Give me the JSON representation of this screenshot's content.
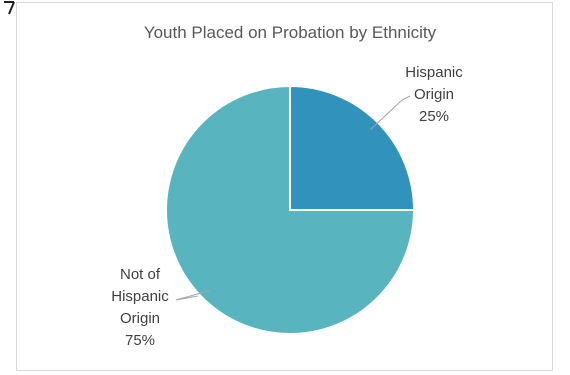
{
  "chart_data": {
    "type": "pie",
    "title": "Youth Placed on Probation by Ethnicity",
    "slices": [
      {
        "name": "Hispanic Origin",
        "value": 25,
        "label_lines": [
          "Hispanic",
          "Origin",
          "25%"
        ],
        "color": "#3193bb"
      },
      {
        "name": "Not of Hispanic Origin",
        "value": 75,
        "label_lines": [
          "Not of",
          "Hispanic",
          "Origin",
          "75%"
        ],
        "color": "#58b5bf"
      }
    ],
    "start_angle": "12 o'clock",
    "direction": "clockwise",
    "legend": "none",
    "labels": "outside with leader lines"
  },
  "colors": {
    "border": "#d9d9d9",
    "title": "#595959",
    "label": "#404040",
    "slice_separator": "#ffffff"
  }
}
